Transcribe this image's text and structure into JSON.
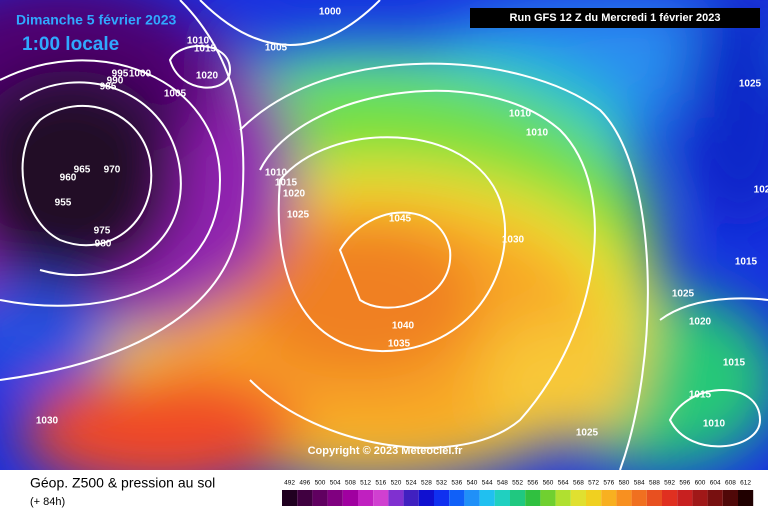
{
  "header": {
    "date": "Dimanche 5 février 2023",
    "time": "1:00 locale",
    "run": "Run GFS 12 Z du Mercredi 1 février 2023"
  },
  "copyright": "Copyright © 2023 Meteociel.fr",
  "footer": {
    "title": "Géop. Z500 & pression au sol",
    "lead": "(+ 84h)"
  },
  "scale": [
    492,
    496,
    500,
    504,
    508,
    512,
    516,
    520,
    524,
    528,
    532,
    536,
    540,
    544,
    548,
    552,
    556,
    560,
    564,
    568,
    572,
    576,
    580,
    584,
    588,
    592,
    596,
    600,
    604,
    608,
    612
  ],
  "isobars": [
    "1000",
    "1010",
    "1015",
    "1005",
    "1020",
    "995",
    "1000",
    "990",
    "985",
    "1005",
    "1010",
    "1010",
    "1025",
    "965",
    "970",
    "960",
    "955",
    "975",
    "980",
    "1010",
    "1015",
    "1020",
    "1025",
    "1045",
    "1030",
    "102",
    "1015",
    "1025",
    "1020",
    "1040",
    "1035",
    "1015",
    "1015",
    "1010",
    "1030",
    "1025"
  ]
}
